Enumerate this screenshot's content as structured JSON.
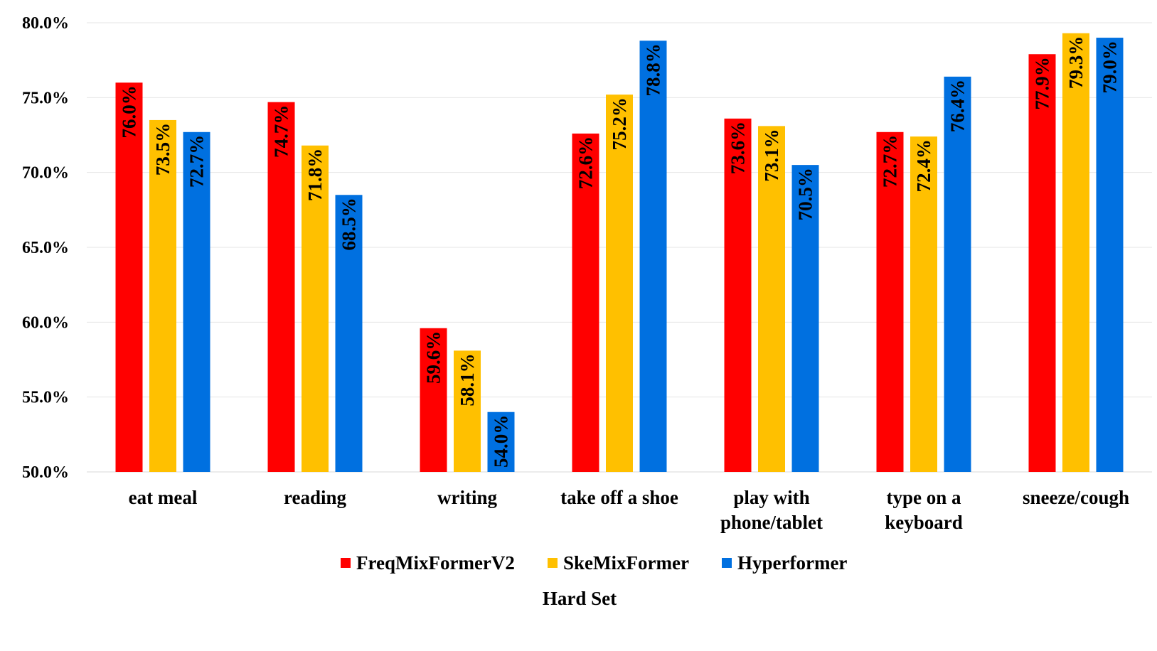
{
  "chart_data": {
    "type": "bar",
    "categories": [
      [
        "eat meal"
      ],
      [
        "reading"
      ],
      [
        "writing"
      ],
      [
        "take off a shoe"
      ],
      [
        "play with",
        "phone/tablet"
      ],
      [
        "type on a",
        "keyboard"
      ],
      [
        "sneeze/cough"
      ]
    ],
    "series": [
      {
        "name": "FreqMixFormerV2",
        "color": "#ff0000",
        "values": [
          76.0,
          74.7,
          59.6,
          72.6,
          73.6,
          72.7,
          77.9
        ],
        "labels": [
          "76.0%",
          "74.7%",
          "59.6%",
          "72.6%",
          "73.6%",
          "72.7%",
          "77.9%"
        ]
      },
      {
        "name": "SkeMixFormer",
        "color": "#ffc000",
        "values": [
          73.5,
          71.8,
          58.1,
          75.2,
          73.1,
          72.4,
          79.3
        ],
        "labels": [
          "73.5%",
          "71.8%",
          "58.1%",
          "75.2%",
          "73.1%",
          "72.4%",
          "79.3%"
        ]
      },
      {
        "name": "Hyperformer",
        "color": "#0070e0",
        "values": [
          72.7,
          68.5,
          54.0,
          78.8,
          70.5,
          76.4,
          79.0
        ],
        "labels": [
          "72.7%",
          "68.5%",
          "54.0%",
          "78.8%",
          "70.5%",
          "76.4%",
          "79.0%"
        ]
      }
    ],
    "xlabel": "Hard Set",
    "ylabel": "",
    "ylim": [
      50,
      80
    ],
    "yticks": [
      "50.0%",
      "55.0%",
      "60.0%",
      "65.0%",
      "70.0%",
      "75.0%",
      "80.0%"
    ],
    "grid": true,
    "legend_position": "bottom"
  }
}
